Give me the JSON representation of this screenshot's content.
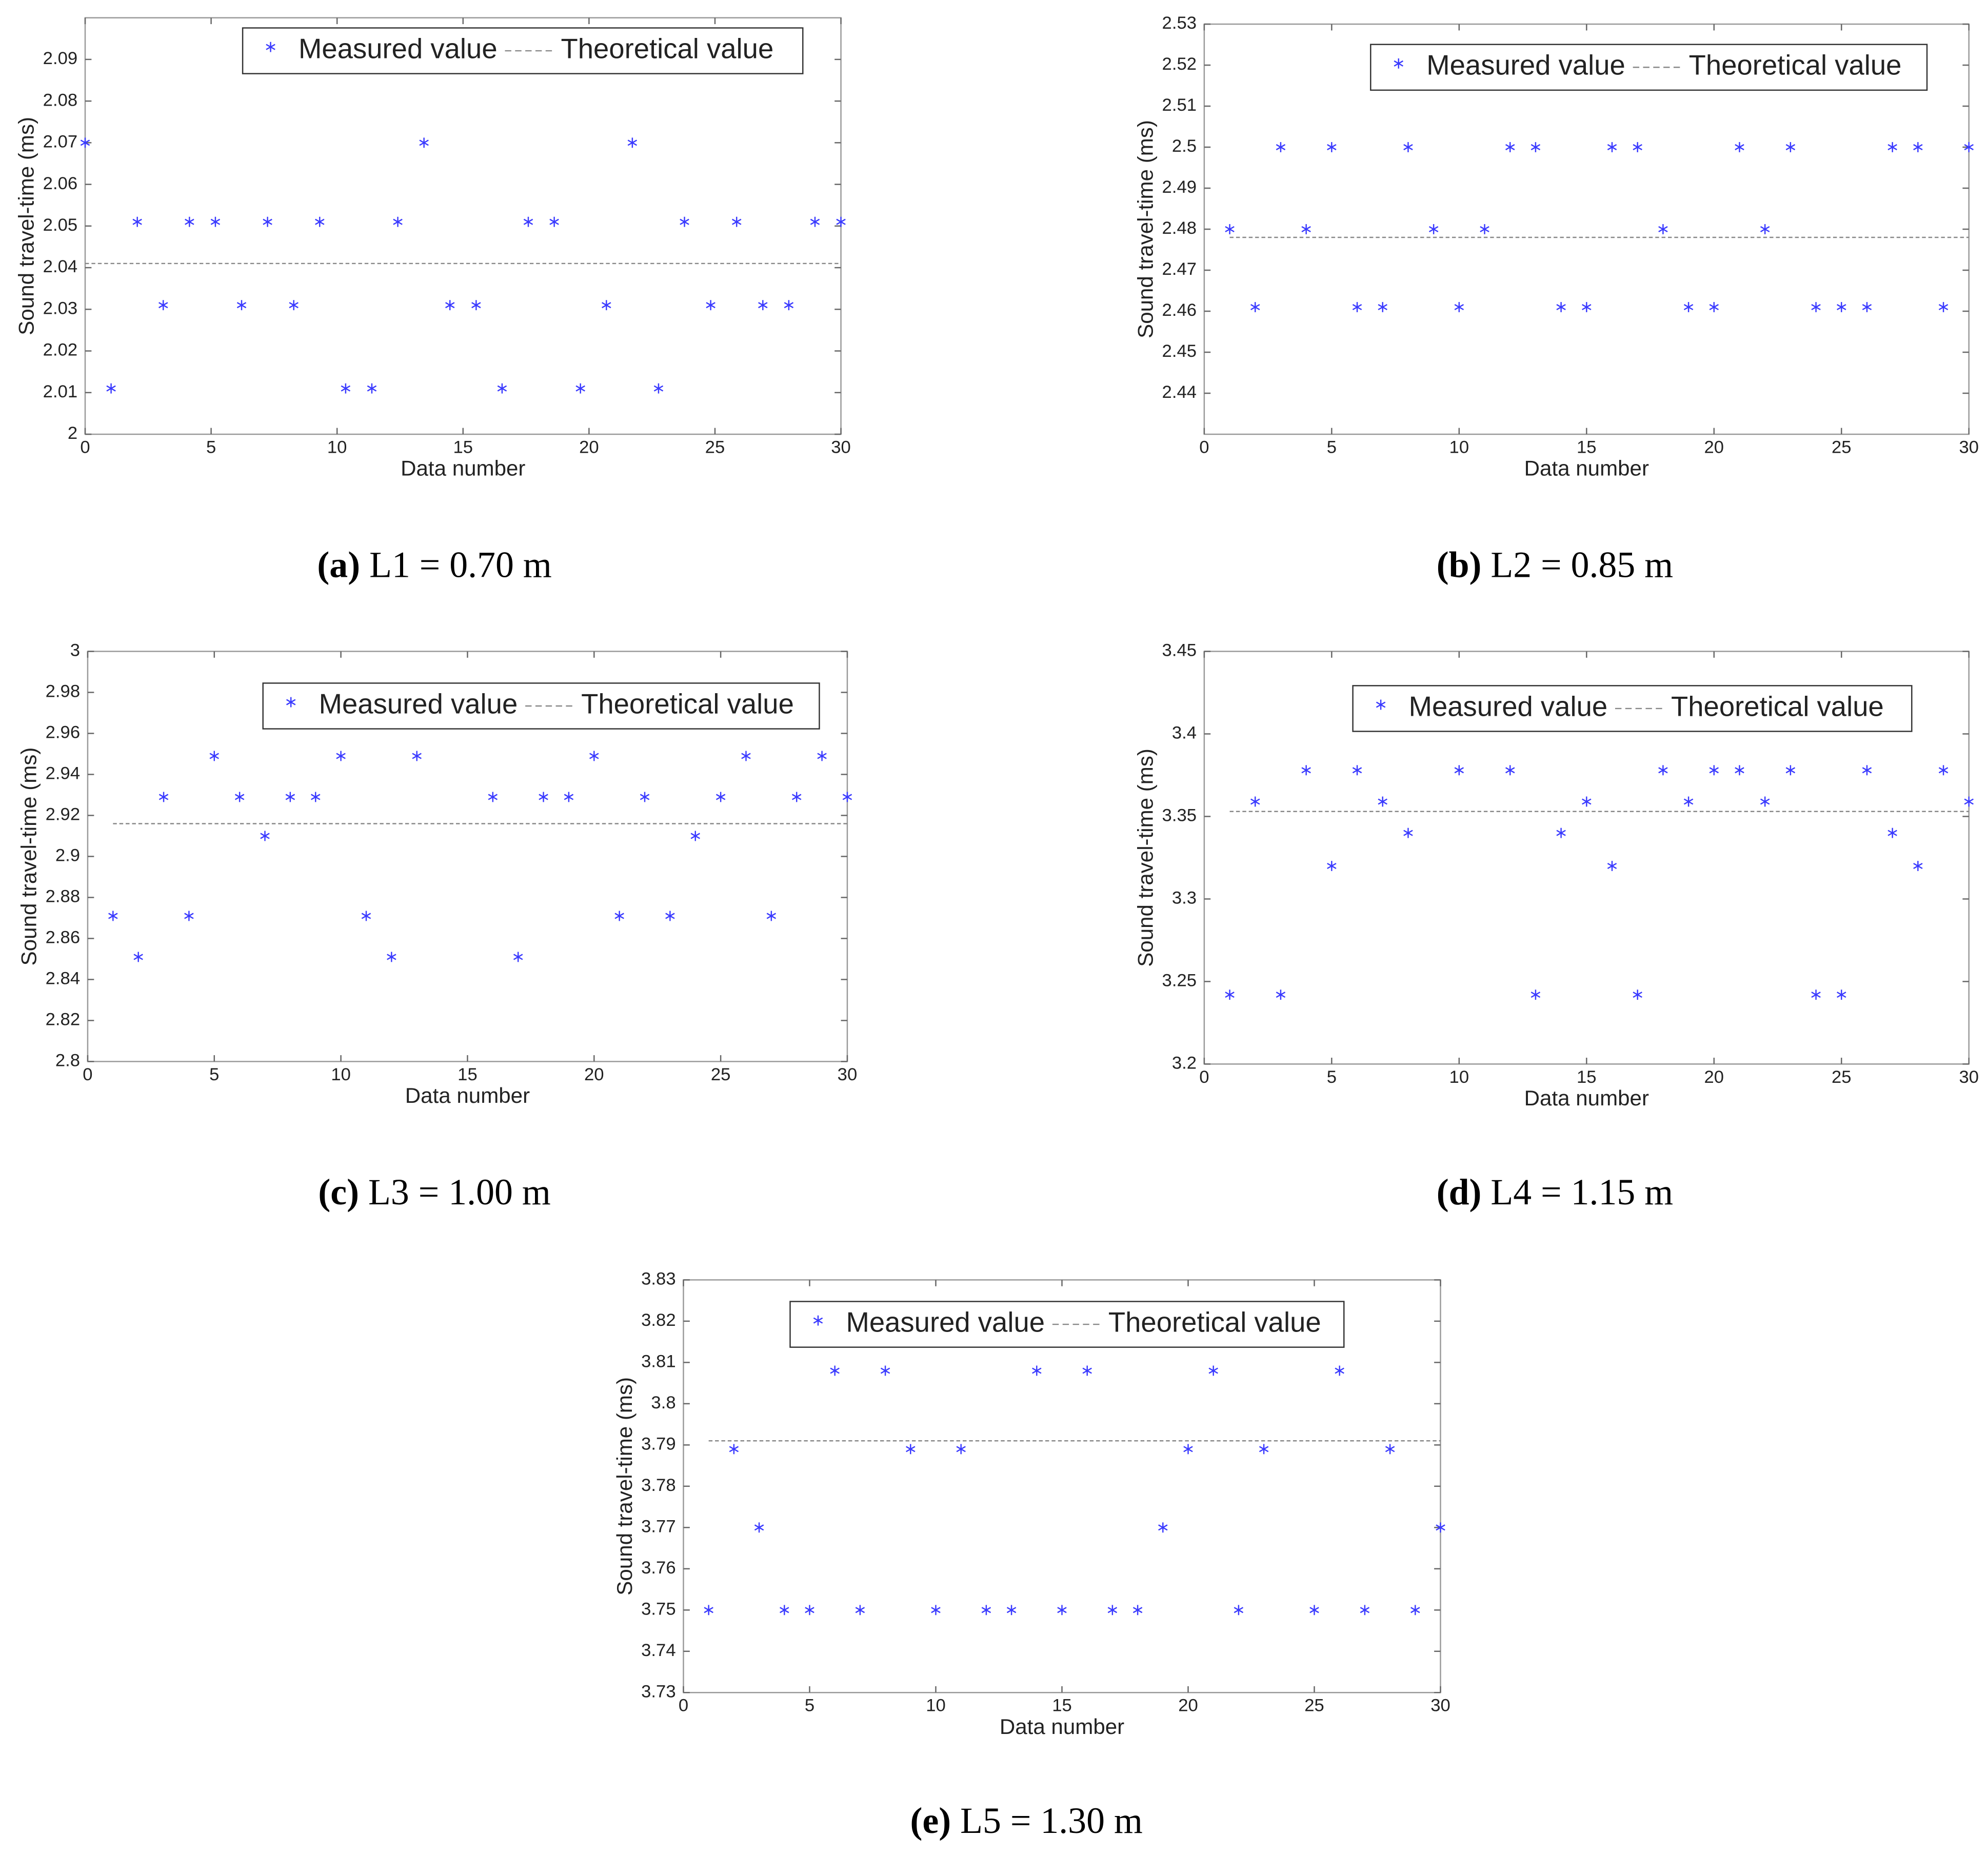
{
  "chart_data": [
    {
      "type": "scatter",
      "caption_label": "(a)",
      "caption": "L1 = 0.70 m",
      "xlabel": "Data number",
      "ylabel": "Sound travel-time (ms)",
      "xlim": [
        0,
        30
      ],
      "xticks": [
        0,
        5,
        10,
        15,
        20,
        25,
        30
      ],
      "ylim": [
        2,
        2.1
      ],
      "yticks": [
        2,
        2.01,
        2.02,
        2.03,
        2.04,
        2.05,
        2.06,
        2.07,
        2.08,
        2.09
      ],
      "series": [
        {
          "name": "Measured value",
          "color": "#3a3aff",
          "x": [
            0,
            1.03,
            2.07,
            3.1,
            4.14,
            5.17,
            6.21,
            7.24,
            8.28,
            9.31,
            10.34,
            11.38,
            12.41,
            13.45,
            14.48,
            15.52,
            16.55,
            17.59,
            18.62,
            19.66,
            20.69,
            21.72,
            22.76,
            23.79,
            24.83,
            25.86,
            26.9,
            27.93,
            28.97,
            30
          ],
          "values": [
            2.07,
            2.011,
            2.051,
            2.031,
            2.051,
            2.051,
            2.031,
            2.051,
            2.031,
            2.051,
            2.011,
            2.011,
            2.051,
            2.07,
            2.031,
            2.031,
            2.011,
            2.051,
            2.051,
            2.011,
            2.031,
            2.07,
            2.011,
            2.051,
            2.031,
            2.051,
            2.031,
            2.031,
            2.051,
            2.051
          ]
        },
        {
          "name": "Theoretical value",
          "color": "#888888",
          "x": [
            0,
            30
          ],
          "values": [
            2.041,
            2.041
          ]
        }
      ]
    },
    {
      "type": "scatter",
      "caption_label": "(b)",
      "caption": "L2 = 0.85 m",
      "xlabel": "Data number",
      "ylabel": "Sound travel-time (ms)",
      "xlim": [
        0,
        30
      ],
      "xticks": [
        0,
        5,
        10,
        15,
        20,
        25,
        30
      ],
      "ylim": [
        2.43,
        2.53
      ],
      "yticks": [
        2.44,
        2.45,
        2.46,
        2.47,
        2.48,
        2.49,
        2.5,
        2.51,
        2.52,
        2.53
      ],
      "series": [
        {
          "name": "Measured value",
          "color": "#3a3aff",
          "x": [
            1,
            2,
            3,
            4,
            5,
            6,
            7,
            8,
            9,
            10,
            11,
            12,
            13,
            14,
            15,
            16,
            17,
            18,
            19,
            20,
            21,
            22,
            23,
            24,
            25,
            26,
            27,
            28,
            29,
            30
          ],
          "values": [
            2.48,
            2.461,
            2.5,
            2.48,
            2.5,
            2.461,
            2.461,
            2.5,
            2.48,
            2.461,
            2.48,
            2.5,
            2.5,
            2.461,
            2.461,
            2.5,
            2.5,
            2.48,
            2.461,
            2.461,
            2.5,
            2.48,
            2.5,
            2.461,
            2.461,
            2.461,
            2.5,
            2.5,
            2.461,
            2.5
          ]
        },
        {
          "name": "Theoretical value",
          "color": "#888888",
          "x": [
            1,
            30
          ],
          "values": [
            2.478,
            2.478
          ]
        }
      ]
    },
    {
      "type": "scatter",
      "caption_label": "(c)",
      "caption": "L3 = 1.00 m",
      "xlabel": "Data number",
      "ylabel": "Sound travel-time (ms)",
      "xlim": [
        0,
        30
      ],
      "xticks": [
        0,
        5,
        10,
        15,
        20,
        25,
        30
      ],
      "ylim": [
        2.8,
        3
      ],
      "yticks": [
        2.8,
        2.82,
        2.84,
        2.86,
        2.88,
        2.9,
        2.92,
        2.94,
        2.96,
        2.98,
        3
      ],
      "series": [
        {
          "name": "Measured value",
          "color": "#3a3aff",
          "x": [
            1,
            2,
            3,
            4,
            5,
            6,
            7,
            8,
            9,
            10,
            11,
            12,
            13,
            14,
            15,
            16,
            17,
            18,
            19,
            20,
            21,
            22,
            23,
            24,
            25,
            26,
            27,
            28,
            29,
            30
          ],
          "values": [
            2.871,
            2.851,
            2.929,
            2.871,
            2.949,
            2.929,
            2.91,
            2.929,
            2.929,
            2.949,
            2.871,
            2.851,
            2.949,
            null,
            null,
            2.929,
            2.851,
            2.929,
            2.929,
            2.949,
            2.871,
            2.929,
            2.871,
            2.91,
            2.929,
            2.949,
            2.871,
            2.929,
            2.949,
            2.929
          ]
        },
        {
          "name": "Theoretical value",
          "color": "#888888",
          "x": [
            1,
            30
          ],
          "values": [
            2.916,
            2.916
          ]
        }
      ]
    },
    {
      "type": "scatter",
      "caption_label": "(d)",
      "caption": "L4 = 1.15 m",
      "xlabel": "Data number",
      "ylabel": "Sound travel-time (ms)",
      "xlim": [
        0,
        30
      ],
      "xticks": [
        0,
        5,
        10,
        15,
        20,
        25,
        30
      ],
      "ylim": [
        3.2,
        3.45
      ],
      "yticks": [
        3.2,
        3.25,
        3.3,
        3.35,
        3.4,
        3.45
      ],
      "series": [
        {
          "name": "Measured value",
          "color": "#3a3aff",
          "x": [
            1,
            2,
            3,
            4,
            5,
            6,
            7,
            8,
            9,
            10,
            11,
            12,
            13,
            14,
            15,
            16,
            17,
            18,
            19,
            20,
            21,
            22,
            23,
            24,
            25,
            26,
            27,
            28,
            29,
            30
          ],
          "values": [
            3.242,
            3.359,
            3.242,
            3.378,
            3.32,
            3.378,
            3.359,
            3.34,
            null,
            3.378,
            null,
            3.378,
            3.242,
            3.34,
            3.359,
            3.32,
            3.242,
            3.378,
            3.359,
            3.378,
            3.378,
            3.359,
            3.378,
            3.242,
            3.242,
            3.378,
            3.34,
            3.32,
            3.378,
            3.359
          ]
        },
        {
          "name": "Theoretical value",
          "color": "#888888",
          "x": [
            1,
            30
          ],
          "values": [
            3.353,
            3.353
          ]
        }
      ]
    },
    {
      "type": "scatter",
      "caption_label": "(e)",
      "caption": "L5 = 1.30 m",
      "xlabel": "Data number",
      "ylabel": "Sound travel-time (ms)",
      "xlim": [
        0,
        30
      ],
      "xticks": [
        0,
        5,
        10,
        15,
        20,
        25,
        30
      ],
      "ylim": [
        3.73,
        3.83
      ],
      "yticks": [
        3.73,
        3.74,
        3.75,
        3.76,
        3.77,
        3.78,
        3.79,
        3.8,
        3.81,
        3.82,
        3.83
      ],
      "series": [
        {
          "name": "Measured value",
          "color": "#3a3aff",
          "x": [
            1,
            2,
            3,
            4,
            5,
            6,
            7,
            8,
            9,
            10,
            11,
            12,
            13,
            14,
            15,
            16,
            17,
            18,
            19,
            20,
            21,
            22,
            23,
            24,
            25,
            26,
            27,
            28,
            29,
            30
          ],
          "values": [
            3.75,
            3.789,
            3.77,
            3.75,
            3.75,
            3.808,
            3.75,
            3.808,
            3.789,
            3.75,
            3.789,
            3.75,
            3.75,
            3.808,
            3.75,
            3.808,
            3.75,
            3.75,
            3.77,
            3.789,
            3.808,
            3.75,
            3.789,
            null,
            3.75,
            3.808,
            3.75,
            3.789,
            3.75,
            3.77
          ]
        },
        {
          "name": "Theoretical value",
          "color": "#888888",
          "x": [
            1,
            30
          ],
          "values": [
            3.791,
            3.791
          ]
        }
      ]
    }
  ]
}
